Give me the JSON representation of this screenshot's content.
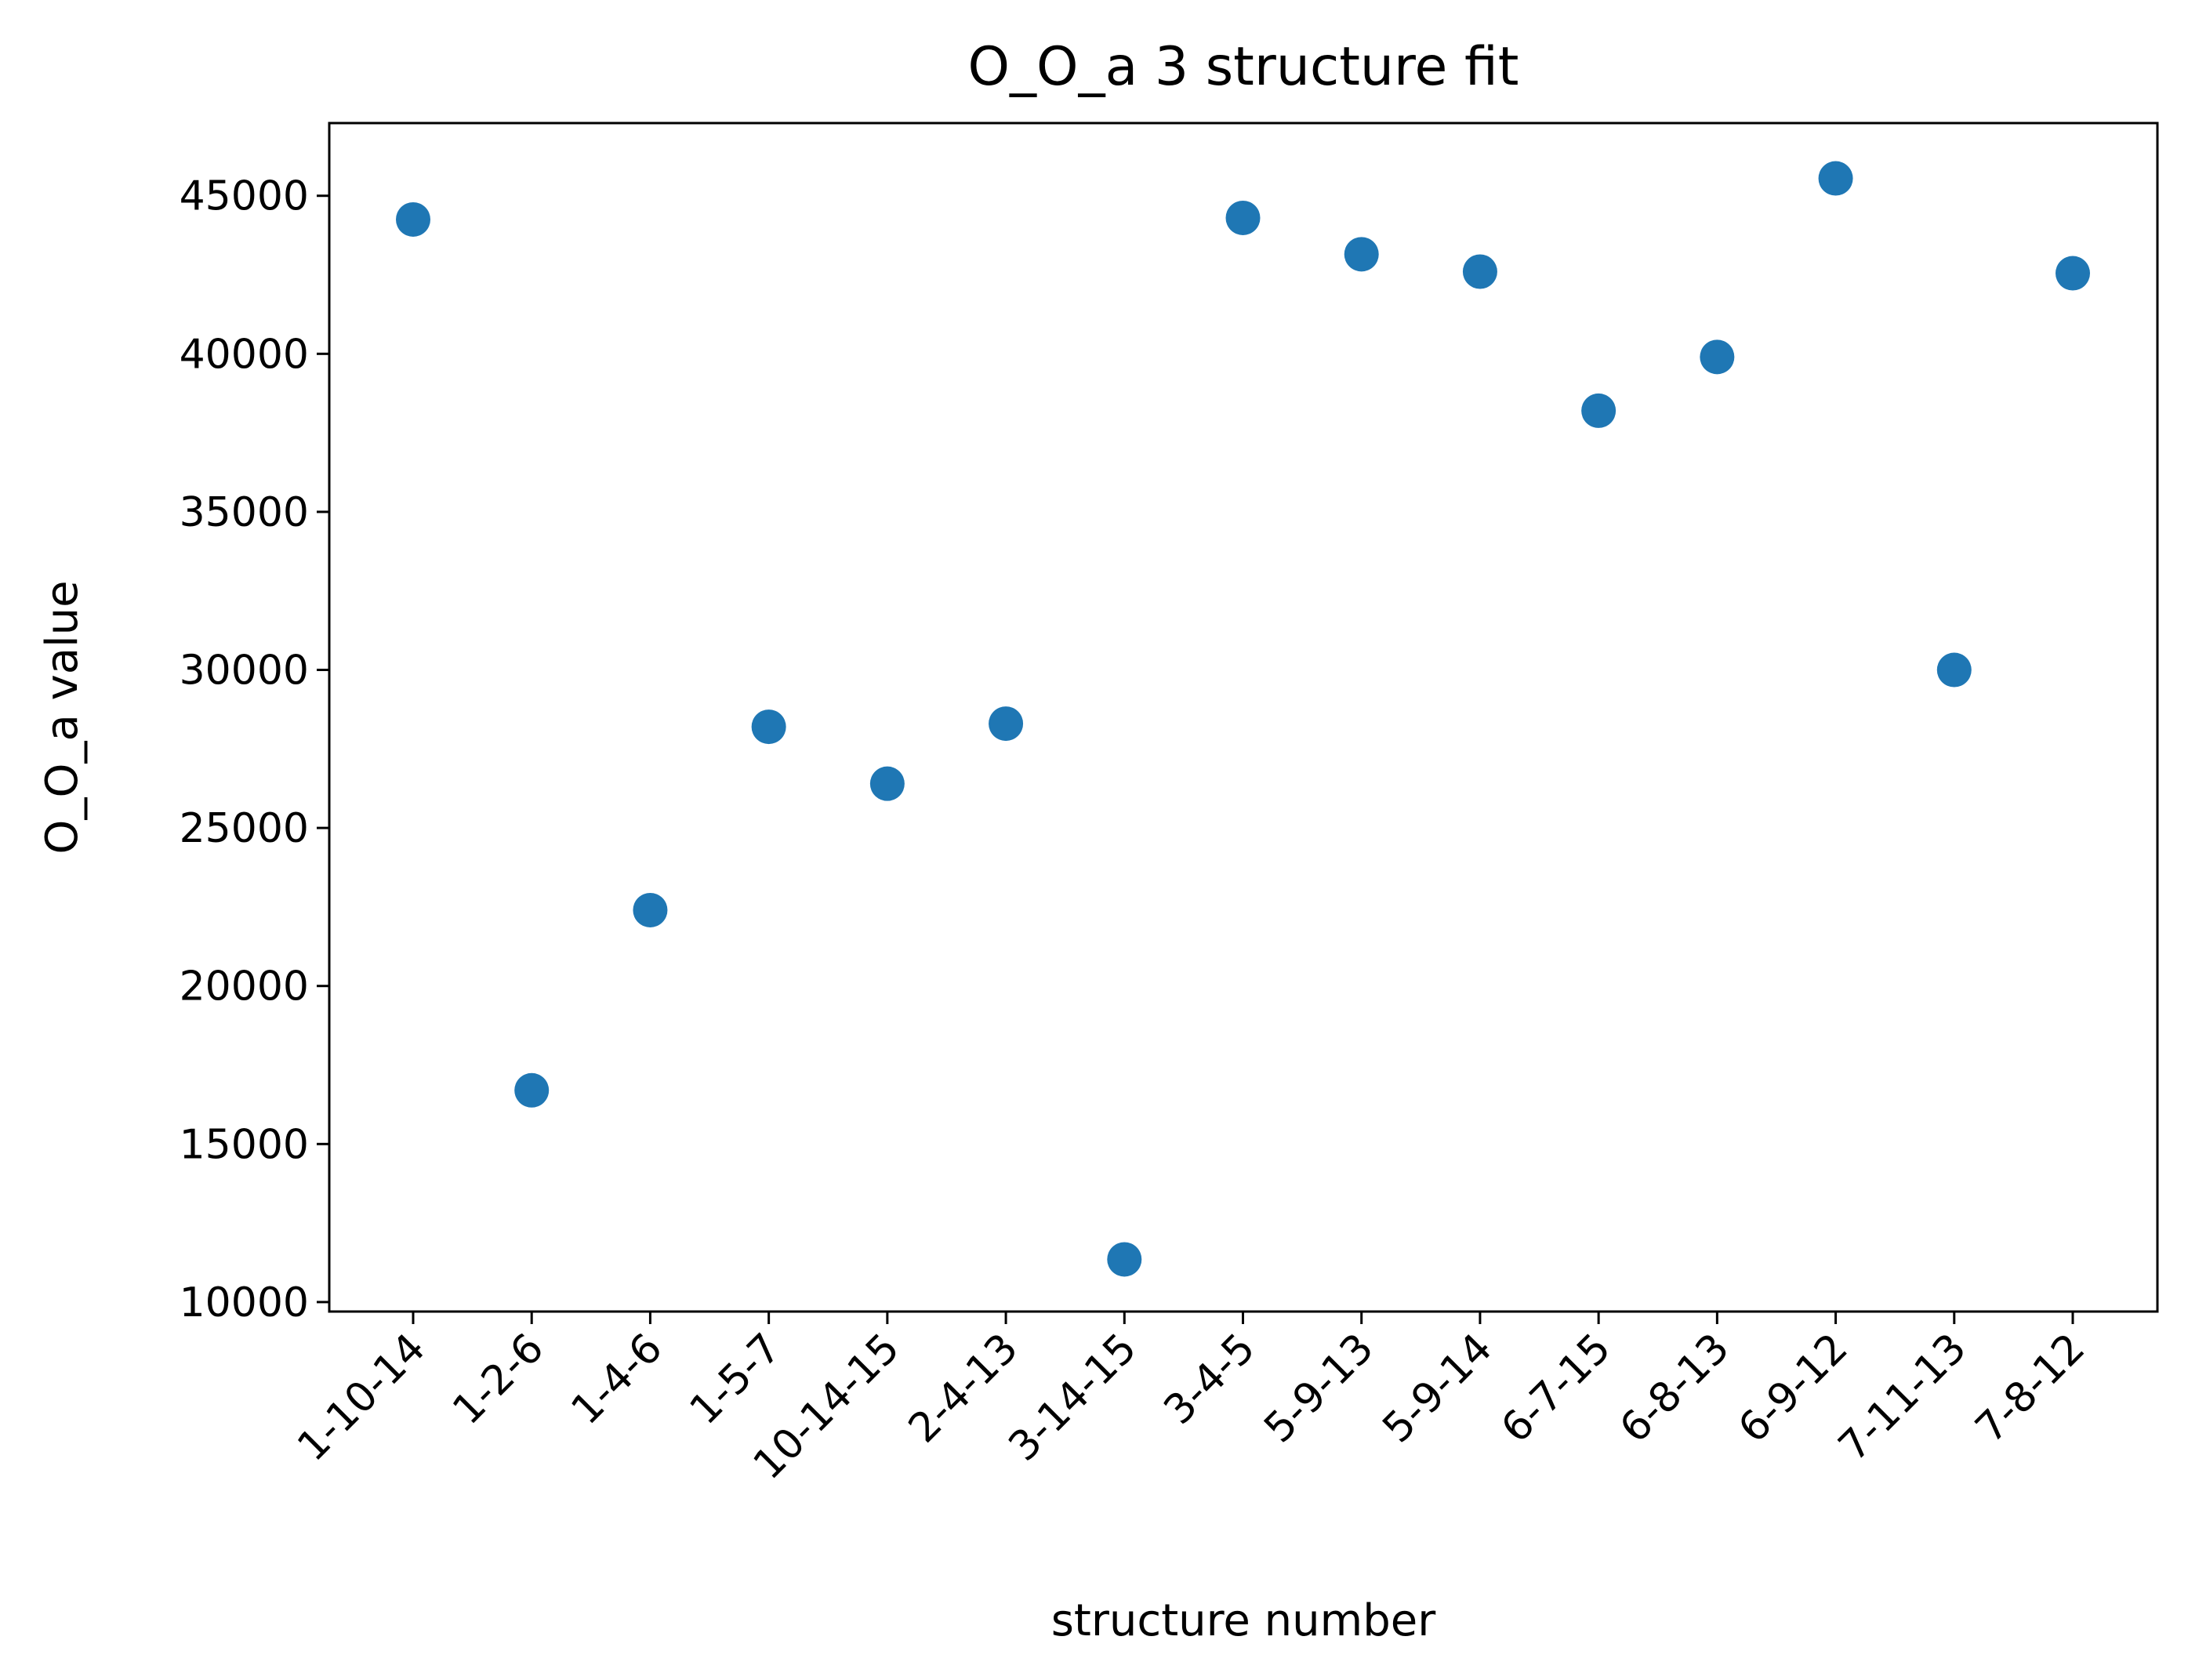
{
  "chart_data": {
    "type": "scatter",
    "title": "O_O_a 3 structure fit",
    "xlabel": "structure number",
    "ylabel": "O_O_a value",
    "categories": [
      "1-10-14",
      "1-2-6",
      "1-4-6",
      "1-5-7",
      "10-14-15",
      "2-4-13",
      "3-14-15",
      "3-4-5",
      "5-9-13",
      "5-9-14",
      "6-7-15",
      "6-8-13",
      "6-9-12",
      "7-11-13",
      "7-8-12"
    ],
    "values": [
      44250,
      16700,
      22400,
      28200,
      26400,
      28300,
      11350,
      44300,
      43150,
      42600,
      38200,
      39900,
      45550,
      30000,
      42550
    ],
    "ylim": [
      9700,
      47300
    ],
    "yticks": [
      10000,
      15000,
      20000,
      25000,
      30000,
      35000,
      40000,
      45000
    ],
    "ytick_labels": [
      "10000",
      "15000",
      "20000",
      "25000",
      "30000",
      "35000",
      "40000",
      "45000"
    ],
    "grid": false,
    "legend": "none",
    "marker_color": "#1f77b4"
  }
}
